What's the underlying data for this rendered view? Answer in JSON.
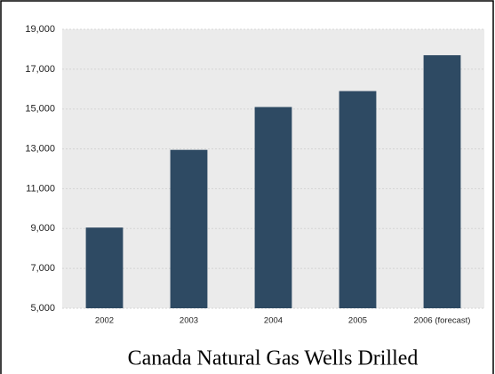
{
  "chart_data": {
    "type": "bar",
    "title": "Canada Natural Gas Wells Drilled",
    "categories": [
      "2002",
      "2003",
      "2004",
      "2005",
      "2006 (forecast)"
    ],
    "values": [
      9050,
      12950,
      15100,
      15900,
      17700
    ],
    "color": "#2e4a63",
    "ylim": [
      5000,
      19000
    ],
    "yticks": [
      {
        "value": 5000,
        "label": "5,000"
      },
      {
        "value": 7000,
        "label": "7,000"
      },
      {
        "value": 9000,
        "label": "9,000"
      },
      {
        "value": 11000,
        "label": "11,000"
      },
      {
        "value": 13000,
        "label": "13,000"
      },
      {
        "value": 15000,
        "label": "15,000"
      },
      {
        "value": 17000,
        "label": "17,000"
      },
      {
        "value": 19000,
        "label": "19,000"
      }
    ],
    "grid": true
  }
}
